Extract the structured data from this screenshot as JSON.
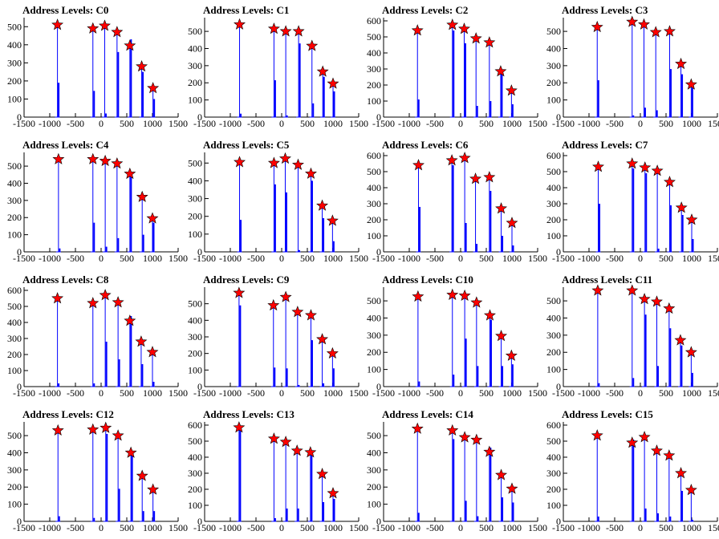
{
  "style": {
    "line_color": "#0000ff",
    "marker_fill": "#ff0000",
    "marker_stroke": "#000000",
    "axis_color": "#000000",
    "marker_shape": "star"
  },
  "chart_data": [
    {
      "type": "bar",
      "title": "Address Levels: C0",
      "xlim": [
        -1500,
        1500
      ],
      "ylim": [
        0,
        550
      ],
      "xticks": [
        -1500,
        -1000,
        -500,
        0,
        500,
        1000,
        1500
      ],
      "yticks": [
        0,
        100,
        200,
        300,
        400,
        500
      ],
      "peaks": [
        {
          "x": -850,
          "y": 510,
          "bar": 190
        },
        {
          "x": -160,
          "y": 490,
          "bar": 145
        },
        {
          "x": 70,
          "y": 505,
          "bar": 20
        },
        {
          "x": 310,
          "y": 470,
          "bar": 360
        },
        {
          "x": 560,
          "y": 395,
          "bar": 430
        },
        {
          "x": 790,
          "y": 280,
          "bar": 250
        },
        {
          "x": 1010,
          "y": 160,
          "bar": 100
        }
      ]
    },
    {
      "type": "bar",
      "title": "Address Levels: C1",
      "xlim": [
        -1500,
        1500
      ],
      "ylim": [
        0,
        580
      ],
      "xticks": [
        -1500,
        -1000,
        -500,
        0,
        500,
        1000,
        1500
      ],
      "yticks": [
        0,
        100,
        200,
        300,
        400,
        500
      ],
      "peaks": [
        {
          "x": -820,
          "y": 540,
          "bar": 20
        },
        {
          "x": -150,
          "y": 515,
          "bar": 215
        },
        {
          "x": 80,
          "y": 500,
          "bar": 10
        },
        {
          "x": 330,
          "y": 500,
          "bar": 430
        },
        {
          "x": 590,
          "y": 415,
          "bar": 80
        },
        {
          "x": 800,
          "y": 265,
          "bar": 235
        },
        {
          "x": 1000,
          "y": 195,
          "bar": 150
        }
      ]
    },
    {
      "type": "bar",
      "title": "Address Levels: C2",
      "xlim": [
        -1500,
        1500
      ],
      "ylim": [
        0,
        620
      ],
      "xticks": [
        -1500,
        -1000,
        -500,
        0,
        500,
        1000,
        1500
      ],
      "yticks": [
        0,
        100,
        200,
        300,
        400,
        500,
        600
      ],
      "peaks": [
        {
          "x": -840,
          "y": 540,
          "bar": 110
        },
        {
          "x": -160,
          "y": 575,
          "bar": 540
        },
        {
          "x": 70,
          "y": 550,
          "bar": 460
        },
        {
          "x": 300,
          "y": 490,
          "bar": 70
        },
        {
          "x": 560,
          "y": 465,
          "bar": 100
        },
        {
          "x": 780,
          "y": 285,
          "bar": 270
        },
        {
          "x": 990,
          "y": 165,
          "bar": 80
        }
      ]
    },
    {
      "type": "bar",
      "title": "Address Levels: C3",
      "xlim": [
        -1500,
        1500
      ],
      "ylim": [
        0,
        580
      ],
      "xticks": [
        -1500,
        -1000,
        -500,
        0,
        500,
        1000,
        1500
      ],
      "yticks": [
        0,
        100,
        200,
        300,
        400,
        500
      ],
      "peaks": [
        {
          "x": -840,
          "y": 525,
          "bar": 215
        },
        {
          "x": -160,
          "y": 555,
          "bar": 10
        },
        {
          "x": 70,
          "y": 540,
          "bar": 55
        },
        {
          "x": 300,
          "y": 495,
          "bar": 40
        },
        {
          "x": 570,
          "y": 500,
          "bar": 280
        },
        {
          "x": 790,
          "y": 310,
          "bar": 250
        },
        {
          "x": 990,
          "y": 190,
          "bar": 170
        }
      ]
    },
    {
      "type": "bar",
      "title": "Address Levels: C4",
      "xlim": [
        -1500,
        1500
      ],
      "ylim": [
        0,
        580
      ],
      "xticks": [
        -1500,
        -1000,
        -500,
        0,
        500,
        1000,
        1500
      ],
      "yticks": [
        0,
        100,
        200,
        300,
        400,
        500
      ],
      "peaks": [
        {
          "x": -830,
          "y": 540,
          "bar": 20
        },
        {
          "x": -160,
          "y": 540,
          "bar": 170
        },
        {
          "x": 80,
          "y": 530,
          "bar": 30
        },
        {
          "x": 310,
          "y": 515,
          "bar": 80
        },
        {
          "x": 560,
          "y": 455,
          "bar": 440
        },
        {
          "x": 800,
          "y": 320,
          "bar": 100
        },
        {
          "x": 1000,
          "y": 195,
          "bar": 170
        }
      ]
    },
    {
      "type": "bar",
      "title": "Address Levels: C5",
      "xlim": [
        -1500,
        1500
      ],
      "ylim": [
        0,
        560
      ],
      "xticks": [
        -1500,
        -1000,
        -500,
        0,
        500,
        1000,
        1500
      ],
      "yticks": [
        0,
        100,
        200,
        300,
        400,
        500
      ],
      "peaks": [
        {
          "x": -820,
          "y": 505,
          "bar": 180
        },
        {
          "x": -150,
          "y": 500,
          "bar": 380
        },
        {
          "x": 70,
          "y": 525,
          "bar": 335
        },
        {
          "x": 320,
          "y": 490,
          "bar": 10
        },
        {
          "x": 570,
          "y": 440,
          "bar": 400
        },
        {
          "x": 790,
          "y": 260,
          "bar": 190
        },
        {
          "x": 990,
          "y": 175,
          "bar": 60
        }
      ]
    },
    {
      "type": "bar",
      "title": "Address Levels: C6",
      "xlim": [
        -1500,
        1500
      ],
      "ylim": [
        0,
        620
      ],
      "xticks": [
        -1500,
        -1000,
        -500,
        0,
        500,
        1000,
        1500
      ],
      "yticks": [
        0,
        100,
        200,
        300,
        400,
        500,
        600
      ],
      "peaks": [
        {
          "x": -820,
          "y": 540,
          "bar": 280
        },
        {
          "x": -170,
          "y": 570,
          "bar": 540
        },
        {
          "x": 80,
          "y": 585,
          "bar": 180
        },
        {
          "x": 290,
          "y": 455,
          "bar": 50
        },
        {
          "x": 560,
          "y": 465,
          "bar": 380
        },
        {
          "x": 790,
          "y": 270,
          "bar": 100
        },
        {
          "x": 1000,
          "y": 180,
          "bar": 40
        }
      ]
    },
    {
      "type": "bar",
      "title": "Address Levels: C7",
      "xlim": [
        -1500,
        1500
      ],
      "ylim": [
        0,
        620
      ],
      "xticks": [
        -1500,
        -1000,
        -500,
        0,
        500,
        1000,
        1500
      ],
      "yticks": [
        0,
        100,
        200,
        300,
        400,
        500,
        600
      ],
      "peaks": [
        {
          "x": -820,
          "y": 530,
          "bar": 300
        },
        {
          "x": -160,
          "y": 550,
          "bar": 520
        },
        {
          "x": 90,
          "y": 525,
          "bar": 490
        },
        {
          "x": 330,
          "y": 505,
          "bar": 20
        },
        {
          "x": 570,
          "y": 435,
          "bar": 290
        },
        {
          "x": 800,
          "y": 275,
          "bar": 230
        },
        {
          "x": 1000,
          "y": 200,
          "bar": 80
        }
      ]
    },
    {
      "type": "bar",
      "title": "Address Levels: C8",
      "xlim": [
        -1500,
        1500
      ],
      "ylim": [
        0,
        620
      ],
      "xticks": [
        -1500,
        -1000,
        -500,
        0,
        500,
        1000,
        1500
      ],
      "yticks": [
        0,
        100,
        200,
        300,
        400,
        500,
        600
      ],
      "peaks": [
        {
          "x": -850,
          "y": 550,
          "bar": 20
        },
        {
          "x": -160,
          "y": 520,
          "bar": 20
        },
        {
          "x": 80,
          "y": 570,
          "bar": 280
        },
        {
          "x": 330,
          "y": 525,
          "bar": 170
        },
        {
          "x": 560,
          "y": 410,
          "bar": 440
        },
        {
          "x": 780,
          "y": 280,
          "bar": 140
        },
        {
          "x": 1000,
          "y": 215,
          "bar": 30
        }
      ]
    },
    {
      "type": "bar",
      "title": "Address Levels: C9",
      "xlim": [
        -1500,
        1500
      ],
      "ylim": [
        0,
        600
      ],
      "xticks": [
        -1500,
        -1000,
        -500,
        0,
        500,
        1000,
        1500
      ],
      "yticks": [
        0,
        100,
        200,
        300,
        400,
        500
      ],
      "peaks": [
        {
          "x": -830,
          "y": 565,
          "bar": 490
        },
        {
          "x": -160,
          "y": 490,
          "bar": 115
        },
        {
          "x": 80,
          "y": 540,
          "bar": 110
        },
        {
          "x": 310,
          "y": 450,
          "bar": 10
        },
        {
          "x": 570,
          "y": 430,
          "bar": 280
        },
        {
          "x": 790,
          "y": 285,
          "bar": 20
        },
        {
          "x": 990,
          "y": 200,
          "bar": 110
        }
      ]
    },
    {
      "type": "bar",
      "title": "Address Levels: C10",
      "xlim": [
        -1500,
        1500
      ],
      "ylim": [
        0,
        580
      ],
      "xticks": [
        -1500,
        -1000,
        -500,
        0,
        500,
        1000,
        1500
      ],
      "yticks": [
        0,
        100,
        200,
        300,
        400,
        500
      ],
      "peaks": [
        {
          "x": -830,
          "y": 525,
          "bar": 30
        },
        {
          "x": -160,
          "y": 535,
          "bar": 70
        },
        {
          "x": 80,
          "y": 530,
          "bar": 280
        },
        {
          "x": 310,
          "y": 490,
          "bar": 120
        },
        {
          "x": 570,
          "y": 415,
          "bar": 390
        },
        {
          "x": 790,
          "y": 295,
          "bar": 120
        },
        {
          "x": 990,
          "y": 180,
          "bar": 130
        }
      ]
    },
    {
      "type": "bar",
      "title": "Address Levels: C11",
      "xlim": [
        -1500,
        1500
      ],
      "ylim": [
        0,
        580
      ],
      "xticks": [
        -1500,
        -1000,
        -500,
        0,
        500,
        1000,
        1500
      ],
      "yticks": [
        0,
        100,
        200,
        300,
        400,
        500
      ],
      "peaks": [
        {
          "x": -830,
          "y": 560,
          "bar": 20
        },
        {
          "x": -160,
          "y": 560,
          "bar": 50
        },
        {
          "x": 80,
          "y": 510,
          "bar": 420
        },
        {
          "x": 320,
          "y": 495,
          "bar": 120
        },
        {
          "x": 560,
          "y": 455,
          "bar": 340
        },
        {
          "x": 780,
          "y": 270,
          "bar": 240
        },
        {
          "x": 990,
          "y": 200,
          "bar": 80
        }
      ]
    },
    {
      "type": "bar",
      "title": "Address Levels: C12",
      "xlim": [
        -1500,
        1500
      ],
      "ylim": [
        0,
        580
      ],
      "xticks": [
        -1500,
        -1000,
        -500,
        0,
        500,
        1000,
        1500
      ],
      "yticks": [
        0,
        100,
        200,
        300,
        400,
        500
      ],
      "peaks": [
        {
          "x": -840,
          "y": 530,
          "bar": 30
        },
        {
          "x": -160,
          "y": 535,
          "bar": 20
        },
        {
          "x": 90,
          "y": 545,
          "bar": 510
        },
        {
          "x": 330,
          "y": 500,
          "bar": 190
        },
        {
          "x": 580,
          "y": 400,
          "bar": 400
        },
        {
          "x": 800,
          "y": 265,
          "bar": 60
        },
        {
          "x": 1010,
          "y": 185,
          "bar": 60
        }
      ]
    },
    {
      "type": "bar",
      "title": "Address Levels: C13",
      "xlim": [
        -1500,
        1500
      ],
      "ylim": [
        0,
        620
      ],
      "xticks": [
        -1500,
        -1000,
        -500,
        0,
        500,
        1000,
        1500
      ],
      "yticks": [
        0,
        100,
        200,
        300,
        400,
        500,
        600
      ],
      "peaks": [
        {
          "x": -830,
          "y": 585,
          "bar": 570
        },
        {
          "x": -150,
          "y": 515,
          "bar": 20
        },
        {
          "x": 80,
          "y": 495,
          "bar": 80
        },
        {
          "x": 300,
          "y": 440,
          "bar": 80
        },
        {
          "x": 560,
          "y": 430,
          "bar": 410
        },
        {
          "x": 790,
          "y": 295,
          "bar": 120
        },
        {
          "x": 1000,
          "y": 175,
          "bar": 140
        }
      ]
    },
    {
      "type": "bar",
      "title": "Address Levels: C14",
      "xlim": [
        -1500,
        1500
      ],
      "ylim": [
        0,
        580
      ],
      "xticks": [
        -1500,
        -1000,
        -500,
        0,
        500,
        1000,
        1500
      ],
      "yticks": [
        0,
        100,
        200,
        300,
        400,
        500
      ],
      "peaks": [
        {
          "x": -840,
          "y": 540,
          "bar": 50
        },
        {
          "x": -160,
          "y": 530,
          "bar": 480
        },
        {
          "x": 80,
          "y": 490,
          "bar": 120
        },
        {
          "x": 310,
          "y": 475,
          "bar": 30
        },
        {
          "x": 560,
          "y": 405,
          "bar": 430
        },
        {
          "x": 790,
          "y": 270,
          "bar": 140
        },
        {
          "x": 1000,
          "y": 190,
          "bar": 110
        }
      ]
    },
    {
      "type": "bar",
      "title": "Address Levels: C15",
      "xlim": [
        -1500,
        1500
      ],
      "ylim": [
        0,
        620
      ],
      "xticks": [
        -1500,
        -1000,
        -500,
        0,
        500,
        1000,
        1500
      ],
      "yticks": [
        0,
        100,
        200,
        300,
        400,
        500,
        600
      ],
      "peaks": [
        {
          "x": -840,
          "y": 535,
          "bar": 30
        },
        {
          "x": -160,
          "y": 490,
          "bar": 510
        },
        {
          "x": 80,
          "y": 525,
          "bar": 80
        },
        {
          "x": 320,
          "y": 440,
          "bar": 50
        },
        {
          "x": 560,
          "y": 410,
          "bar": 30
        },
        {
          "x": 790,
          "y": 300,
          "bar": 190
        },
        {
          "x": 990,
          "y": 195,
          "bar": 10
        }
      ]
    }
  ]
}
